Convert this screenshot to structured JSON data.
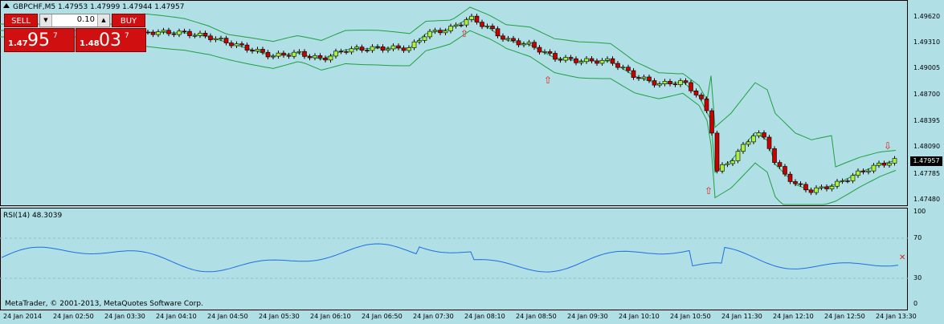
{
  "window": {
    "symbol_line": "GBPCHF,M5  1.47953 1.47999 1.47944 1.47957"
  },
  "trade_panel": {
    "sell_label": "SELL",
    "buy_label": "BUY",
    "lot": "0.10",
    "sell_price": {
      "prefix": "1.47",
      "big": "95",
      "sup": "7"
    },
    "buy_price": {
      "prefix": "1.48",
      "big": "03",
      "sup": "7"
    }
  },
  "price_axis": {
    "ticks": [
      "1.49620",
      "1.49310",
      "1.49005",
      "1.48700",
      "1.48395",
      "1.48090",
      "1.47785",
      "1.47480"
    ],
    "current_price": "1.47957"
  },
  "rsi": {
    "label": "RSI(14) 48.3039",
    "ticks": [
      "100",
      "70",
      "30",
      "0"
    ]
  },
  "copyright": "MetaTrader, © 2001-2013, MetaQuotes Software Corp.",
  "time_axis": [
    "24 Jan 2014",
    "24 Jan 02:50",
    "24 Jan 03:30",
    "24 Jan 04:10",
    "24 Jan 04:50",
    "24 Jan 05:30",
    "24 Jan 06:10",
    "24 Jan 06:50",
    "24 Jan 07:30",
    "24 Jan 08:10",
    "24 Jan 08:50",
    "24 Jan 09:30",
    "24 Jan 10:10",
    "24 Jan 10:50",
    "24 Jan 11:30",
    "24 Jan 12:10",
    "24 Jan 12:50",
    "24 Jan 13:30"
  ],
  "colors": {
    "background": "#b0dfe6",
    "bull_candle": "#aaf03c",
    "bear_candle": "#c80000",
    "bands": "#20a040",
    "rsi_line": "#1e6fe0",
    "arrow": "#e02020"
  }
}
